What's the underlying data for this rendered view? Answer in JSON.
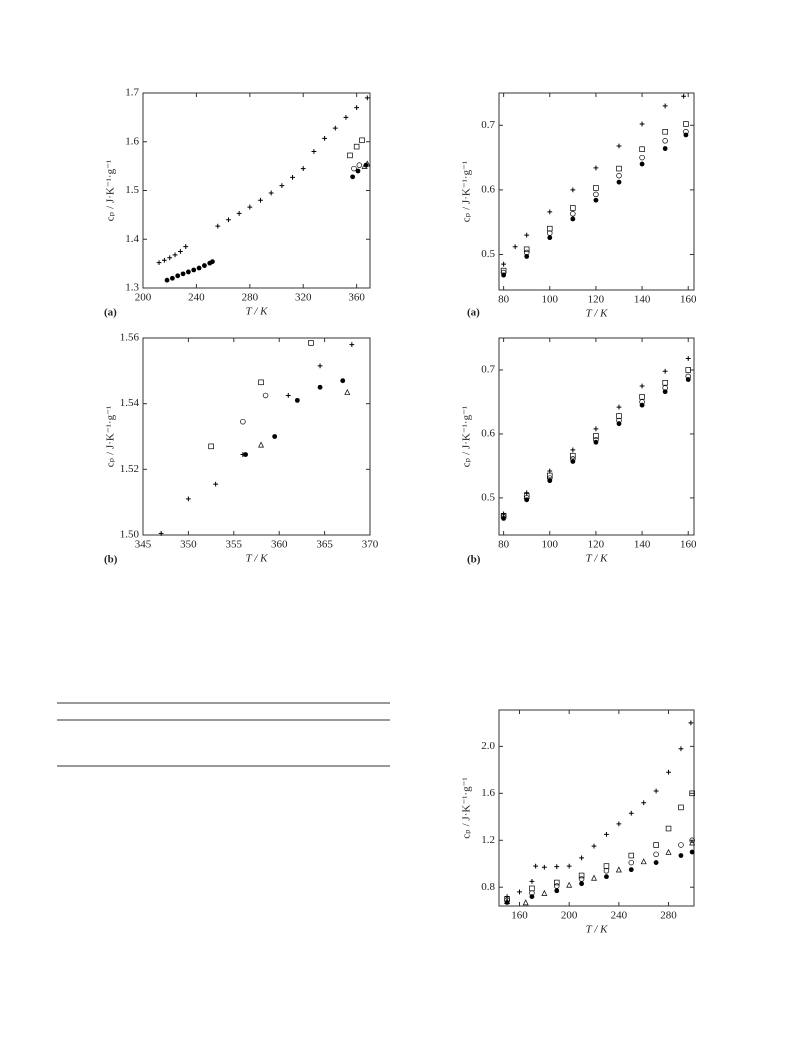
{
  "chart_data": [
    {
      "type": "scatter",
      "panel": "(a)",
      "xlabel": "T / K",
      "ylabel": "cₚ / J·K⁻¹·g⁻¹",
      "xlim": [
        200,
        370
      ],
      "xticks": [
        200,
        240,
        280,
        320,
        360
      ],
      "ylim": [
        1.3,
        1.7
      ],
      "yticks": [
        1.3,
        1.4,
        1.5,
        1.6,
        1.7
      ],
      "series": [
        {
          "marker": "plus",
          "color": "#000",
          "x": [
            212,
            216,
            220,
            224,
            228,
            232,
            256,
            264,
            272,
            280,
            288,
            296,
            304,
            312,
            320,
            328,
            336,
            344,
            352,
            360,
            368
          ],
          "values": [
            1.352,
            1.357,
            1.362,
            1.368,
            1.375,
            1.385,
            1.427,
            1.44,
            1.453,
            1.466,
            1.48,
            1.495,
            1.51,
            1.527,
            1.545,
            1.58,
            1.607,
            1.628,
            1.65,
            1.67,
            1.69
          ]
        },
        {
          "marker": "filled",
          "color": "#000",
          "x": [
            218,
            222,
            226,
            230,
            234,
            238,
            242,
            246,
            250,
            252,
            357,
            361,
            367
          ],
          "values": [
            1.316,
            1.32,
            1.325,
            1.329,
            1.333,
            1.337,
            1.341,
            1.346,
            1.351,
            1.354,
            1.528,
            1.54,
            1.552
          ]
        },
        {
          "marker": "square",
          "color": "#000",
          "x": [
            355,
            360,
            364
          ],
          "values": [
            1.572,
            1.59,
            1.603
          ]
        },
        {
          "marker": "circle",
          "color": "#000",
          "x": [
            358,
            362
          ],
          "values": [
            1.545,
            1.552
          ]
        },
        {
          "marker": "triangle",
          "color": "#000",
          "x": [
            366,
            368
          ],
          "values": [
            1.55,
            1.555
          ]
        }
      ]
    },
    {
      "type": "scatter",
      "panel": "(b)",
      "xlabel": "T / K",
      "ylabel": "cₚ / J·K⁻¹·g⁻¹",
      "xlim": [
        345,
        370
      ],
      "xticks": [
        345,
        350,
        355,
        360,
        365,
        370
      ],
      "ylim": [
        1.5,
        1.56
      ],
      "yticks": [
        {
          "value": 1.5,
          "label": "1.50"
        },
        1.52,
        1.54,
        1.56
      ],
      "series": [
        {
          "marker": "plus",
          "color": "#000",
          "x": [
            347,
            350,
            353,
            356,
            361,
            364.5,
            368
          ],
          "values": [
            1.5005,
            1.511,
            1.5155,
            1.5245,
            1.5425,
            1.5515,
            1.558
          ]
        },
        {
          "marker": "square",
          "color": "#000",
          "x": [
            352.5,
            358,
            363.5
          ],
          "values": [
            1.527,
            1.5465,
            1.5585
          ]
        },
        {
          "marker": "circle",
          "color": "#000",
          "x": [
            356,
            358.5
          ],
          "values": [
            1.5345,
            1.5425
          ]
        },
        {
          "marker": "filled",
          "color": "#000",
          "x": [
            356.3,
            359.5,
            362,
            364.5,
            367
          ],
          "values": [
            1.5245,
            1.53,
            1.541,
            1.545,
            1.547
          ]
        },
        {
          "marker": "triangle",
          "color": "#000",
          "x": [
            358,
            367.5
          ],
          "values": [
            1.5275,
            1.5435
          ]
        }
      ]
    },
    {
      "type": "scatter",
      "panel": "(a)",
      "xlabel": "T / K",
      "ylabel": "cₚ / J·K⁻¹·g⁻¹",
      "xlim": [
        78,
        162.5
      ],
      "xticks": [
        80,
        100,
        120,
        140,
        160
      ],
      "ylim": [
        0.445,
        0.75
      ],
      "yticks": [
        0.5,
        0.6,
        0.7
      ],
      "series": [
        {
          "marker": "plus",
          "color": "#000",
          "x": [
            80,
            85,
            90,
            100,
            110,
            120,
            130,
            140,
            150,
            158
          ],
          "values": [
            0.485,
            0.512,
            0.53,
            0.566,
            0.6,
            0.634,
            0.668,
            0.702,
            0.73,
            0.745
          ]
        },
        {
          "marker": "square",
          "color": "#000",
          "x": [
            80,
            90,
            100,
            110,
            120,
            130,
            140,
            150,
            159
          ],
          "values": [
            0.475,
            0.508,
            0.54,
            0.572,
            0.603,
            0.633,
            0.663,
            0.69,
            0.702
          ]
        },
        {
          "marker": "circle",
          "color": "#000",
          "x": [
            80,
            90,
            100,
            110,
            120,
            130,
            140,
            150,
            159
          ],
          "values": [
            0.472,
            0.503,
            0.533,
            0.563,
            0.593,
            0.622,
            0.65,
            0.676,
            0.69
          ]
        },
        {
          "marker": "filled",
          "color": "#000",
          "x": [
            80,
            90,
            100,
            110,
            120,
            130,
            140,
            150,
            159
          ],
          "values": [
            0.468,
            0.497,
            0.526,
            0.555,
            0.584,
            0.612,
            0.64,
            0.664,
            0.685
          ]
        }
      ]
    },
    {
      "type": "scatter",
      "panel": "(b)",
      "xlabel": "T / K",
      "ylabel": "cₚ / J·K⁻¹·g⁻¹",
      "xlim": [
        78,
        162.5
      ],
      "xticks": [
        80,
        100,
        120,
        140,
        160
      ],
      "ylim": [
        0.442,
        0.75
      ],
      "yticks": [
        0.5,
        0.6,
        0.7
      ],
      "series": [
        {
          "marker": "plus",
          "color": "#000",
          "x": [
            80,
            90,
            100,
            110,
            120,
            130,
            140,
            150,
            160
          ],
          "values": [
            0.475,
            0.508,
            0.542,
            0.575,
            0.608,
            0.642,
            0.675,
            0.698,
            0.718
          ]
        },
        {
          "marker": "square",
          "color": "#000",
          "x": [
            80,
            90,
            100,
            110,
            120,
            130,
            140,
            150,
            160
          ],
          "values": [
            0.472,
            0.503,
            0.535,
            0.566,
            0.597,
            0.628,
            0.658,
            0.68,
            0.7
          ]
        },
        {
          "marker": "circle",
          "color": "#000",
          "x": [
            80,
            90,
            100,
            110,
            120,
            130,
            140,
            150,
            160
          ],
          "values": [
            0.47,
            0.5,
            0.531,
            0.561,
            0.591,
            0.621,
            0.65,
            0.672,
            0.69
          ]
        },
        {
          "marker": "filled",
          "color": "#000",
          "x": [
            80,
            90,
            100,
            110,
            120,
            130,
            140,
            150,
            160
          ],
          "values": [
            0.468,
            0.497,
            0.527,
            0.557,
            0.587,
            0.616,
            0.645,
            0.666,
            0.685
          ]
        }
      ]
    },
    {
      "type": "scatter",
      "xlabel": "T / K",
      "ylabel": "cₚ / J·K⁻¹·g⁻¹",
      "xlim": [
        143.5,
        300.5
      ],
      "xticks": [
        160,
        200,
        240,
        280
      ],
      "ylim": [
        0.64,
        2.31
      ],
      "yticks": [
        0.8,
        1.2,
        1.6,
        {
          "value": 2,
          "label": "2.0"
        }
      ],
      "series": [
        {
          "marker": "plus",
          "color": "#000",
          "x": [
            150,
            160,
            170,
            173,
            180,
            190,
            200,
            210,
            220,
            230,
            240,
            250,
            260,
            270,
            280,
            290,
            298
          ],
          "values": [
            0.72,
            0.76,
            0.85,
            0.98,
            0.97,
            0.975,
            0.98,
            1.05,
            1.15,
            1.25,
            1.34,
            1.43,
            1.52,
            1.62,
            1.78,
            1.98,
            2.2
          ]
        },
        {
          "marker": "square",
          "color": "#000",
          "x": [
            150,
            170,
            190,
            210,
            230,
            250,
            270,
            280,
            290,
            299
          ],
          "values": [
            0.7,
            0.79,
            0.84,
            0.9,
            0.98,
            1.07,
            1.16,
            1.3,
            1.48,
            1.6
          ]
        },
        {
          "marker": "circle",
          "color": "#000",
          "x": [
            150,
            170,
            190,
            210,
            230,
            250,
            270,
            290,
            299
          ],
          "values": [
            0.69,
            0.75,
            0.81,
            0.87,
            0.94,
            1.01,
            1.08,
            1.16,
            1.2
          ]
        },
        {
          "marker": "triangle",
          "color": "#000",
          "x": [
            150,
            165,
            180,
            200,
            220,
            240,
            260,
            280,
            299
          ],
          "values": [
            0.68,
            0.67,
            0.75,
            0.82,
            0.88,
            0.95,
            1.02,
            1.1,
            1.18
          ]
        },
        {
          "marker": "filled",
          "color": "#000",
          "x": [
            150,
            170,
            190,
            210,
            230,
            250,
            270,
            290,
            299
          ],
          "values": [
            0.67,
            0.72,
            0.77,
            0.83,
            0.89,
            0.95,
            1.01,
            1.07,
            1.1
          ]
        }
      ]
    }
  ]
}
